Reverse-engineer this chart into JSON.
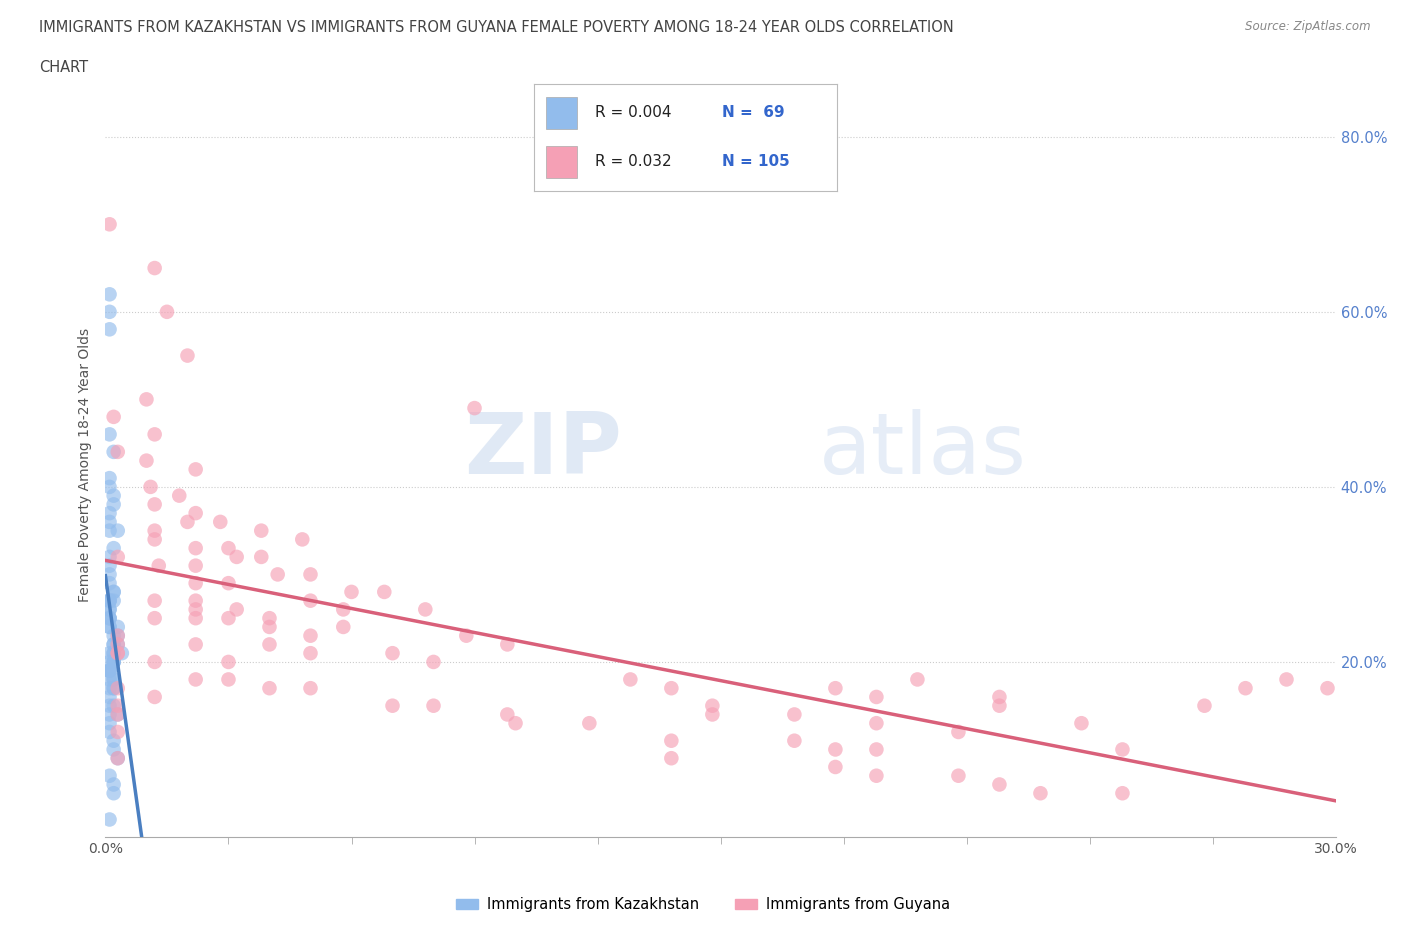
{
  "title_line1": "IMMIGRANTS FROM KAZAKHSTAN VS IMMIGRANTS FROM GUYANA FEMALE POVERTY AMONG 18-24 YEAR OLDS CORRELATION",
  "title_line2": "CHART",
  "source_text": "Source: ZipAtlas.com",
  "ylabel": "Female Poverty Among 18-24 Year Olds",
  "legend_label_kaz": "Immigrants from Kazakhstan",
  "legend_label_guy": "Immigrants from Guyana",
  "R_kaz": 0.004,
  "N_kaz": 69,
  "R_guy": 0.032,
  "N_guy": 105,
  "kaz_color": "#92bcec",
  "guy_color": "#f5a0b5",
  "kaz_line_color_solid": "#4a7fc1",
  "kaz_line_color_dash": "#7aaad8",
  "guy_line_color": "#d9607a",
  "watermark_zip": "ZIP",
  "watermark_atlas": "atlas",
  "xlim": [
    0.0,
    0.3
  ],
  "ylim": [
    0.0,
    0.85
  ],
  "x_ticks": [
    0.0,
    0.3
  ],
  "x_tick_labels_bottom": [
    "0.0%",
    "30.0%"
  ],
  "y_ticks_right": [
    0.2,
    0.4,
    0.6,
    0.8
  ],
  "y_tick_labels_right": [
    "20.0%",
    "40.0%",
    "60.0%",
    "80.0%"
  ],
  "kaz_x": [
    0.001,
    0.001,
    0.001,
    0.001,
    0.002,
    0.001,
    0.001,
    0.002,
    0.002,
    0.001,
    0.001,
    0.003,
    0.001,
    0.002,
    0.001,
    0.001,
    0.001,
    0.001,
    0.002,
    0.002,
    0.001,
    0.001,
    0.002,
    0.001,
    0.001,
    0.001,
    0.001,
    0.001,
    0.001,
    0.001,
    0.001,
    0.003,
    0.003,
    0.002,
    0.002,
    0.002,
    0.003,
    0.004,
    0.002,
    0.001,
    0.002,
    0.002,
    0.002,
    0.002,
    0.001,
    0.001,
    0.001,
    0.001,
    0.001,
    0.002,
    0.002,
    0.001,
    0.001,
    0.002,
    0.002,
    0.001,
    0.001,
    0.002,
    0.003,
    0.001,
    0.001,
    0.001,
    0.002,
    0.002,
    0.003,
    0.001,
    0.002,
    0.002,
    0.001
  ],
  "kaz_y": [
    0.62,
    0.6,
    0.58,
    0.46,
    0.44,
    0.41,
    0.4,
    0.39,
    0.38,
    0.37,
    0.36,
    0.35,
    0.35,
    0.33,
    0.32,
    0.31,
    0.3,
    0.29,
    0.28,
    0.28,
    0.27,
    0.27,
    0.27,
    0.27,
    0.26,
    0.26,
    0.25,
    0.25,
    0.25,
    0.24,
    0.24,
    0.24,
    0.23,
    0.23,
    0.22,
    0.22,
    0.22,
    0.21,
    0.21,
    0.21,
    0.21,
    0.2,
    0.2,
    0.2,
    0.2,
    0.19,
    0.19,
    0.19,
    0.19,
    0.18,
    0.18,
    0.18,
    0.17,
    0.17,
    0.17,
    0.16,
    0.15,
    0.15,
    0.14,
    0.14,
    0.13,
    0.12,
    0.11,
    0.1,
    0.09,
    0.07,
    0.06,
    0.05,
    0.02
  ],
  "guy_x": [
    0.001,
    0.012,
    0.015,
    0.02,
    0.01,
    0.002,
    0.012,
    0.003,
    0.01,
    0.022,
    0.011,
    0.018,
    0.012,
    0.022,
    0.028,
    0.02,
    0.038,
    0.012,
    0.048,
    0.012,
    0.022,
    0.03,
    0.032,
    0.038,
    0.003,
    0.013,
    0.022,
    0.05,
    0.042,
    0.022,
    0.03,
    0.06,
    0.068,
    0.05,
    0.012,
    0.022,
    0.032,
    0.058,
    0.022,
    0.078,
    0.04,
    0.03,
    0.022,
    0.012,
    0.058,
    0.04,
    0.003,
    0.088,
    0.05,
    0.04,
    0.098,
    0.003,
    0.022,
    0.003,
    0.07,
    0.003,
    0.05,
    0.012,
    0.08,
    0.03,
    0.09,
    0.022,
    0.03,
    0.128,
    0.003,
    0.138,
    0.04,
    0.05,
    0.218,
    0.012,
    0.003,
    0.148,
    0.07,
    0.08,
    0.098,
    0.148,
    0.003,
    0.118,
    0.1,
    0.188,
    0.208,
    0.003,
    0.138,
    0.168,
    0.178,
    0.188,
    0.248,
    0.003,
    0.138,
    0.178,
    0.188,
    0.208,
    0.218,
    0.228,
    0.248,
    0.168,
    0.178,
    0.188,
    0.198,
    0.218,
    0.238,
    0.268,
    0.278,
    0.288,
    0.298
  ],
  "guy_y": [
    0.7,
    0.65,
    0.6,
    0.55,
    0.5,
    0.48,
    0.46,
    0.44,
    0.43,
    0.42,
    0.4,
    0.39,
    0.38,
    0.37,
    0.36,
    0.36,
    0.35,
    0.35,
    0.34,
    0.34,
    0.33,
    0.33,
    0.32,
    0.32,
    0.32,
    0.31,
    0.31,
    0.3,
    0.3,
    0.29,
    0.29,
    0.28,
    0.28,
    0.27,
    0.27,
    0.27,
    0.26,
    0.26,
    0.26,
    0.26,
    0.25,
    0.25,
    0.25,
    0.25,
    0.24,
    0.24,
    0.23,
    0.23,
    0.23,
    0.22,
    0.22,
    0.22,
    0.22,
    0.21,
    0.21,
    0.21,
    0.21,
    0.2,
    0.2,
    0.2,
    0.49,
    0.18,
    0.18,
    0.18,
    0.17,
    0.17,
    0.17,
    0.17,
    0.16,
    0.16,
    0.15,
    0.15,
    0.15,
    0.15,
    0.14,
    0.14,
    0.14,
    0.13,
    0.13,
    0.13,
    0.12,
    0.12,
    0.11,
    0.11,
    0.1,
    0.1,
    0.1,
    0.09,
    0.09,
    0.08,
    0.07,
    0.07,
    0.06,
    0.05,
    0.05,
    0.14,
    0.17,
    0.16,
    0.18,
    0.15,
    0.13,
    0.15,
    0.17,
    0.18,
    0.17
  ]
}
